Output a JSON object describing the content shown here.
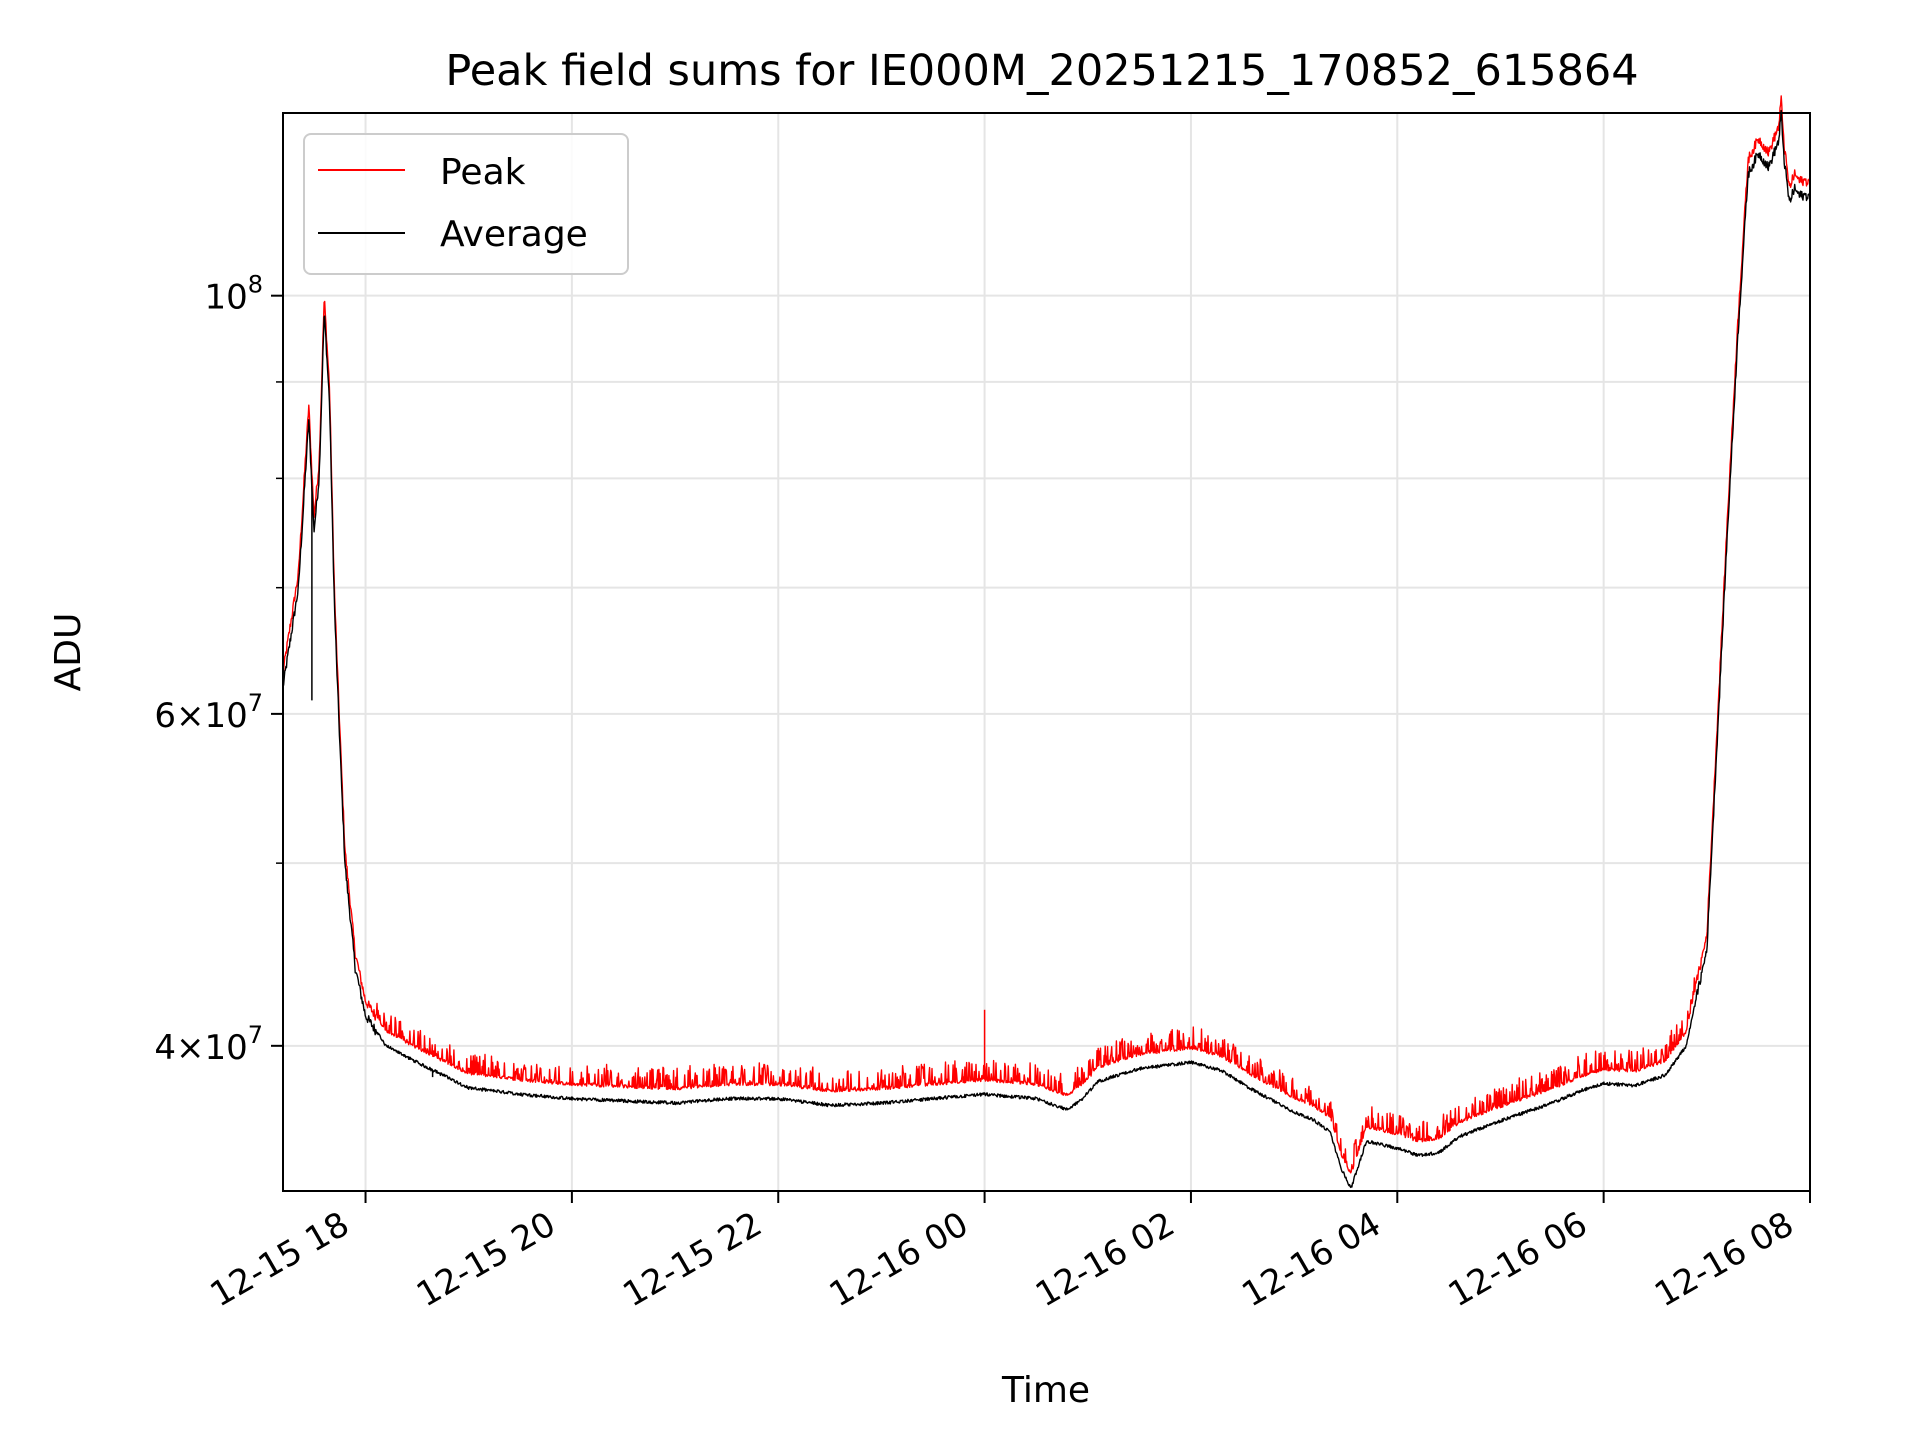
{
  "chart_data": {
    "type": "line",
    "title": "Peak field sums for IE000M_20251215_170852_615864",
    "xlabel": "Time",
    "ylabel": "ADU",
    "yscale": "log",
    "ylim": [
      33500000,
      125000000
    ],
    "xlim_hours_from_2025_12_15_00": [
      17.2,
      32.0
    ],
    "x_ticks": [
      {
        "label": "12-15 18",
        "hour": 18
      },
      {
        "label": "12-15 20",
        "hour": 20
      },
      {
        "label": "12-15 22",
        "hour": 22
      },
      {
        "label": "12-16 00",
        "hour": 24
      },
      {
        "label": "12-16 02",
        "hour": 26
      },
      {
        "label": "12-16 04",
        "hour": 28
      },
      {
        "label": "12-16 06",
        "hour": 30
      },
      {
        "label": "12-16 08",
        "hour": 32
      }
    ],
    "y_major_ticks": [
      {
        "mant": "",
        "exp": "8",
        "value": 100000000
      },
      {
        "mant": "6",
        "exp": "7",
        "value": 60000000
      },
      {
        "mant": "4",
        "exp": "7",
        "value": 40000000
      }
    ],
    "y_minor_ticks": [
      50000000,
      70000000,
      80000000,
      90000000
    ],
    "grid": true,
    "legend": {
      "position": "top-left",
      "entries": [
        "Peak",
        "Average"
      ]
    },
    "series": [
      {
        "name": "Peak",
        "color": "#ff0000"
      },
      {
        "name": "Average",
        "color": "#000000"
      }
    ],
    "average_profile": {
      "x_hours": [
        17.2,
        17.35,
        17.45,
        17.5,
        17.55,
        17.6,
        17.65,
        17.7,
        17.75,
        17.8,
        17.9,
        18.0,
        18.2,
        18.5,
        19.0,
        19.5,
        20.0,
        20.5,
        21.0,
        21.5,
        22.0,
        22.5,
        23.0,
        23.5,
        24.0,
        24.5,
        24.8,
        24.95,
        25.1,
        25.5,
        26.0,
        26.3,
        26.6,
        27.0,
        27.2,
        27.35,
        27.45,
        27.55,
        27.7,
        28.0,
        28.2,
        28.4,
        28.6,
        29.0,
        29.5,
        29.8,
        30.0,
        30.3,
        30.6,
        30.8,
        31.0,
        31.1,
        31.2,
        31.3,
        31.4,
        31.5,
        31.6,
        31.7,
        31.72,
        31.75,
        31.8,
        31.85,
        31.9,
        32.0
      ],
      "values": [
        62000000,
        70000000,
        86000000,
        75000000,
        80000000,
        98000000,
        88000000,
        68000000,
        58000000,
        50000000,
        44000000,
        41500000,
        40000000,
        39200000,
        38000000,
        37700000,
        37500000,
        37400000,
        37300000,
        37500000,
        37500000,
        37200000,
        37300000,
        37500000,
        37700000,
        37500000,
        37000000,
        37500000,
        38300000,
        38900000,
        39200000,
        38800000,
        37900000,
        36900000,
        36500000,
        36000000,
        34500000,
        33600000,
        35600000,
        35300000,
        35000000,
        35100000,
        35800000,
        36500000,
        37300000,
        37900000,
        38200000,
        38100000,
        38600000,
        40000000,
        45000000,
        58000000,
        75000000,
        95000000,
        116000000,
        119000000,
        117000000,
        121000000,
        125000000,
        118000000,
        112000000,
        114000000,
        113000000,
        113000000
      ]
    },
    "peak_ratio": 1.018,
    "spikes": [
      {
        "series": "Peak",
        "hour": 24.0,
        "value": 41800000
      },
      {
        "series": "Average",
        "hour": 17.48,
        "value": 61000000
      },
      {
        "series": "Average",
        "hour": 18.65,
        "value": 38500000
      }
    ]
  }
}
